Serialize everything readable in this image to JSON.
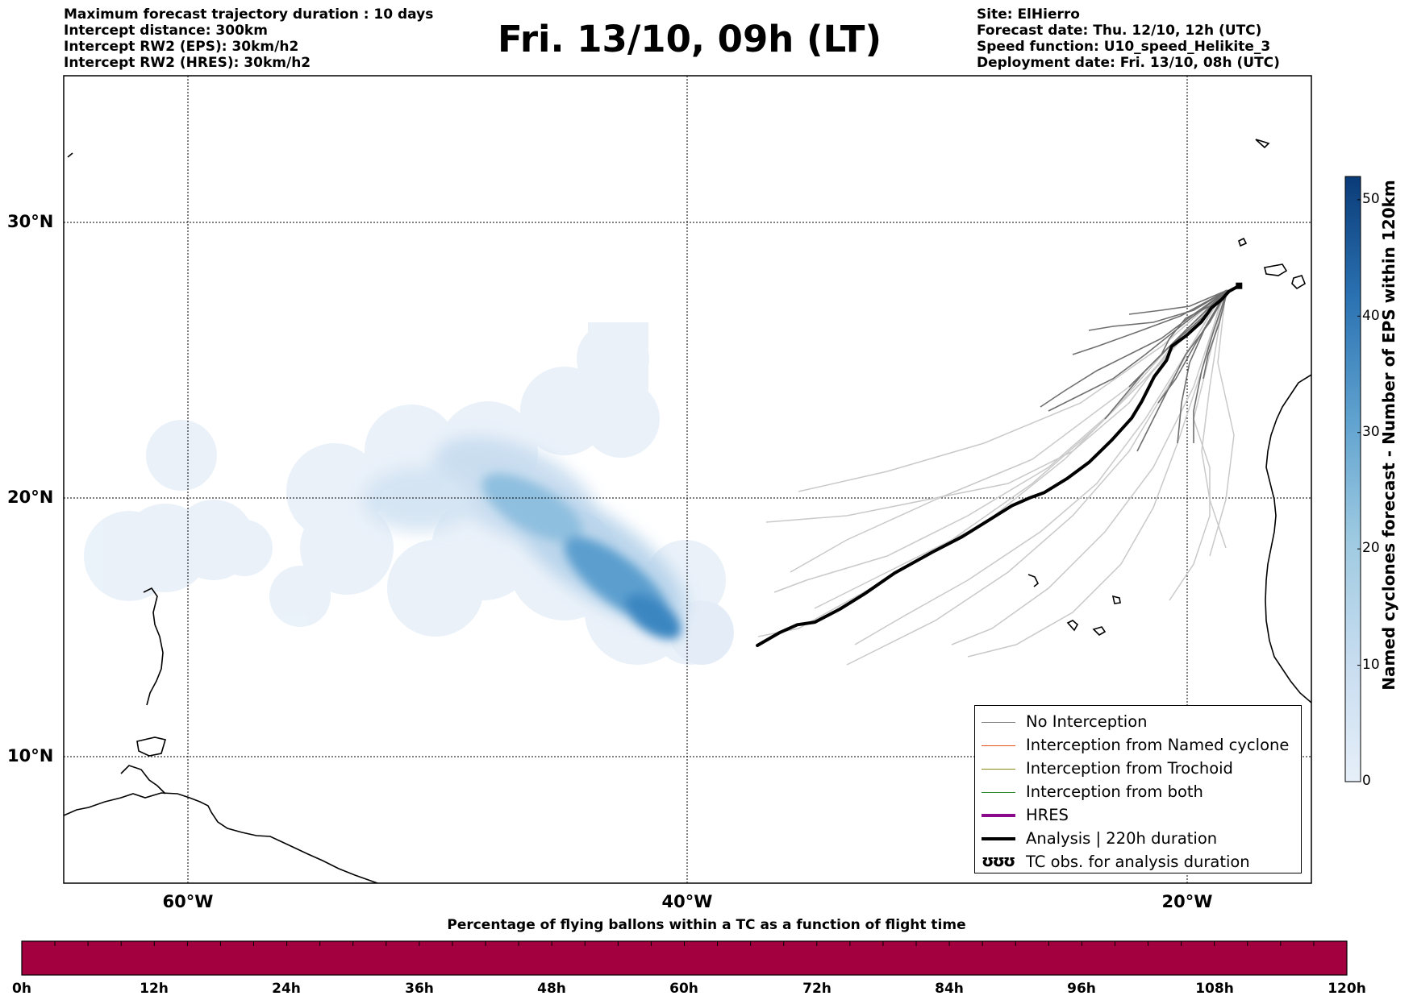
{
  "header": {
    "left_lines": [
      "Maximum forecast trajectory duration : 10 days",
      "Intercept distance: 300km",
      "Intercept RW2 (EPS):  30km/h2",
      "Intercept RW2 (HRES): 30km/h2"
    ],
    "title": "Fri. 13/10, 09h (LT)",
    "right_lines": [
      "Site: ElHierro",
      "Forecast date: Thu. 12/10, 12h (UTC)",
      "Speed function: U10_speed_Helikite_3",
      "Deployment date: Fri. 13/10, 08h (UTC)"
    ]
  },
  "map": {
    "lat_labels": [
      "30°N",
      "20°N",
      "10°N"
    ],
    "lat_values": [
      30,
      20,
      10
    ],
    "lon_labels": [
      "60°W",
      "40°W",
      "20°W"
    ],
    "lon_values": [
      -60,
      -40,
      -20
    ],
    "lon_range": [
      -65,
      -15
    ],
    "lat_range": [
      5.5,
      34.8
    ],
    "analysis_track": [
      [
        -37.2,
        14.3
      ],
      [
        -36.3,
        14.8
      ],
      [
        -35.6,
        15.1
      ],
      [
        -34.9,
        15.2
      ],
      [
        -33.9,
        15.7
      ],
      [
        -32.9,
        16.3
      ],
      [
        -31.7,
        17.1
      ],
      [
        -30.2,
        17.9
      ],
      [
        -29.0,
        18.5
      ],
      [
        -28.0,
        19.1
      ],
      [
        -27.0,
        19.7
      ],
      [
        -26.3,
        20.0
      ],
      [
        -25.7,
        20.2
      ],
      [
        -24.8,
        20.7
      ],
      [
        -23.9,
        21.3
      ],
      [
        -23.0,
        22.1
      ],
      [
        -22.2,
        22.9
      ],
      [
        -21.8,
        23.5
      ],
      [
        -21.3,
        24.4
      ],
      [
        -20.8,
        25.0
      ],
      [
        -20.6,
        25.5
      ],
      [
        -20.0,
        25.9
      ],
      [
        -19.4,
        26.4
      ],
      [
        -19.0,
        26.9
      ],
      [
        -18.6,
        27.2
      ],
      [
        -18.3,
        27.5
      ],
      [
        -17.9,
        27.7
      ]
    ],
    "site_lonlat": [
      -17.9,
      27.7
    ]
  },
  "legend": {
    "items": [
      {
        "label": "No Interception",
        "color": "#7f7f7f",
        "style": "thin"
      },
      {
        "label": "Interception from Named cyclone",
        "color": "#e8531d",
        "style": "thin"
      },
      {
        "label": "Interception from Trochoid",
        "color": "#8b8a1a",
        "style": "thin"
      },
      {
        "label": "Interception from both",
        "color": "#2e8b2e",
        "style": "thin"
      },
      {
        "label": "HRES",
        "color": "#8b0a8b",
        "style": "thick"
      },
      {
        "label": "Analysis | 220h duration",
        "color": "#000000",
        "style": "thick"
      },
      {
        "label": "TC obs. for analysis duration",
        "color": "#000000",
        "style": "symbol",
        "symbol": "ʊʊʊ"
      }
    ]
  },
  "colorbar": {
    "title": "Named cyclones forecast - Number of EPS within 120km",
    "ticks": [
      "0",
      "10",
      "20",
      "30",
      "40",
      "50"
    ],
    "tick_values": [
      0,
      10,
      20,
      30,
      40,
      50
    ],
    "max": 52,
    "color_low": "#e6eff9",
    "color_high": "#0a3b78"
  },
  "flight_bar": {
    "title": "Percentage of flying ballons within a TC as a function of flight time",
    "color": "#a3003f",
    "ticks": [
      "0h",
      "12h",
      "24h",
      "36h",
      "48h",
      "60h",
      "72h",
      "84h",
      "96h",
      "108h",
      "120h"
    ]
  }
}
